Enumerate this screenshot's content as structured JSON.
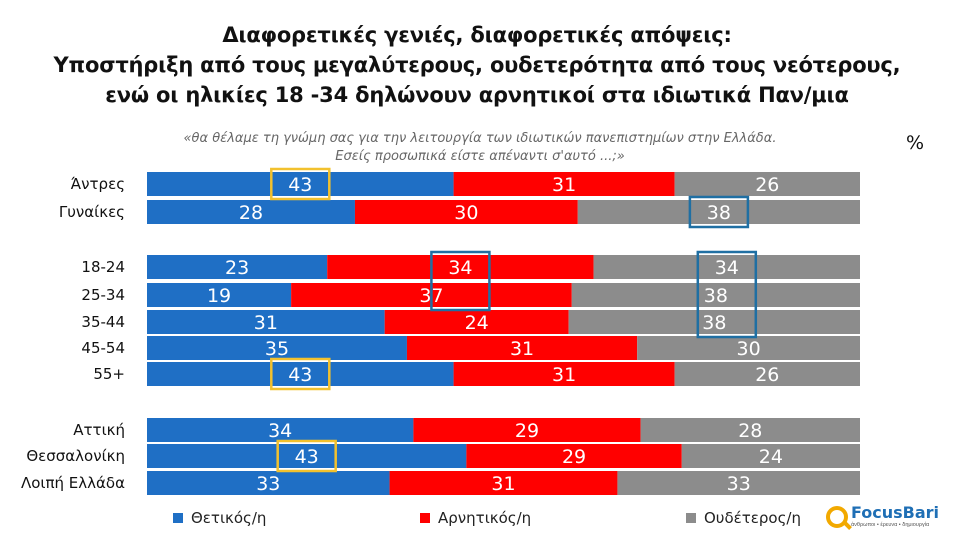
{
  "title_lines": [
    "Διαφορετικές γενιές, διαφορετικές απόψεις:",
    "Υποστήριξη από τους μεγαλύτερους, ουδετερότητα από τους νεότερους,",
    "ενώ οι ηλικίες 18 -34 δηλώνουν αρνητικοί στα ιδιωτικά Παν/μια"
  ],
  "question_lines": [
    "«θα θέλαμε τη γνώμη σας για την λειτουργία των ιδιωτικών πανεπιστημίων στην Ελλάδα.",
    "Εσείς προσωπικά είστε απέναντι σ'αυτό ...;»"
  ],
  "unit": "%",
  "logo": {
    "name": "FocusBari",
    "tagline": "άνθρωποι • έρευνα • δημιουργία"
  },
  "colors": {
    "positive": "#1f6fc5",
    "negative": "#ff0000",
    "neutral": "#8c8c8c",
    "highlight_gold": "#f2c12e",
    "highlight_blue": "#1f6fa3"
  },
  "chart_data": {
    "type": "bar",
    "orientation": "horizontal",
    "stacked": true,
    "categories": [
      "Άντρες",
      "Γυναίκες",
      "18-24",
      "25-34",
      "35-44",
      "45-54",
      "55+",
      "Αττική",
      "Θεσσαλονίκη",
      "Λοιπή Ελλάδα"
    ],
    "groups": [
      [
        0,
        1
      ],
      [
        2,
        3,
        4,
        5,
        6
      ],
      [
        7,
        8,
        9
      ]
    ],
    "series": [
      {
        "name": "Θετικός/η",
        "color": "#1f6fc5",
        "values": [
          43,
          28,
          23,
          19,
          31,
          35,
          43,
          34,
          43,
          33
        ]
      },
      {
        "name": "Αρνητικός/η",
        "color": "#ff0000",
        "values": [
          31,
          30,
          34,
          37,
          24,
          31,
          31,
          29,
          29,
          31
        ]
      },
      {
        "name": "Ουδέτερος/η",
        "color": "#8c8c8c",
        "values": [
          26,
          38,
          34,
          38,
          38,
          30,
          26,
          28,
          24,
          33
        ]
      }
    ],
    "highlights": [
      {
        "category_index": 0,
        "series_index": 0,
        "color": "gold"
      },
      {
        "category_index": 6,
        "series_index": 0,
        "color": "gold"
      },
      {
        "category_index": 8,
        "series_index": 0,
        "color": "gold"
      },
      {
        "category_index": 1,
        "series_index": 2,
        "color": "blue"
      },
      {
        "category_index_range": [
          2,
          3
        ],
        "series_index": 1,
        "color": "blue"
      },
      {
        "category_index_range": [
          2,
          4
        ],
        "series_index": 2,
        "color": "blue"
      }
    ],
    "legend_position": "bottom",
    "xlim": [
      0,
      100
    ],
    "grid": false
  }
}
